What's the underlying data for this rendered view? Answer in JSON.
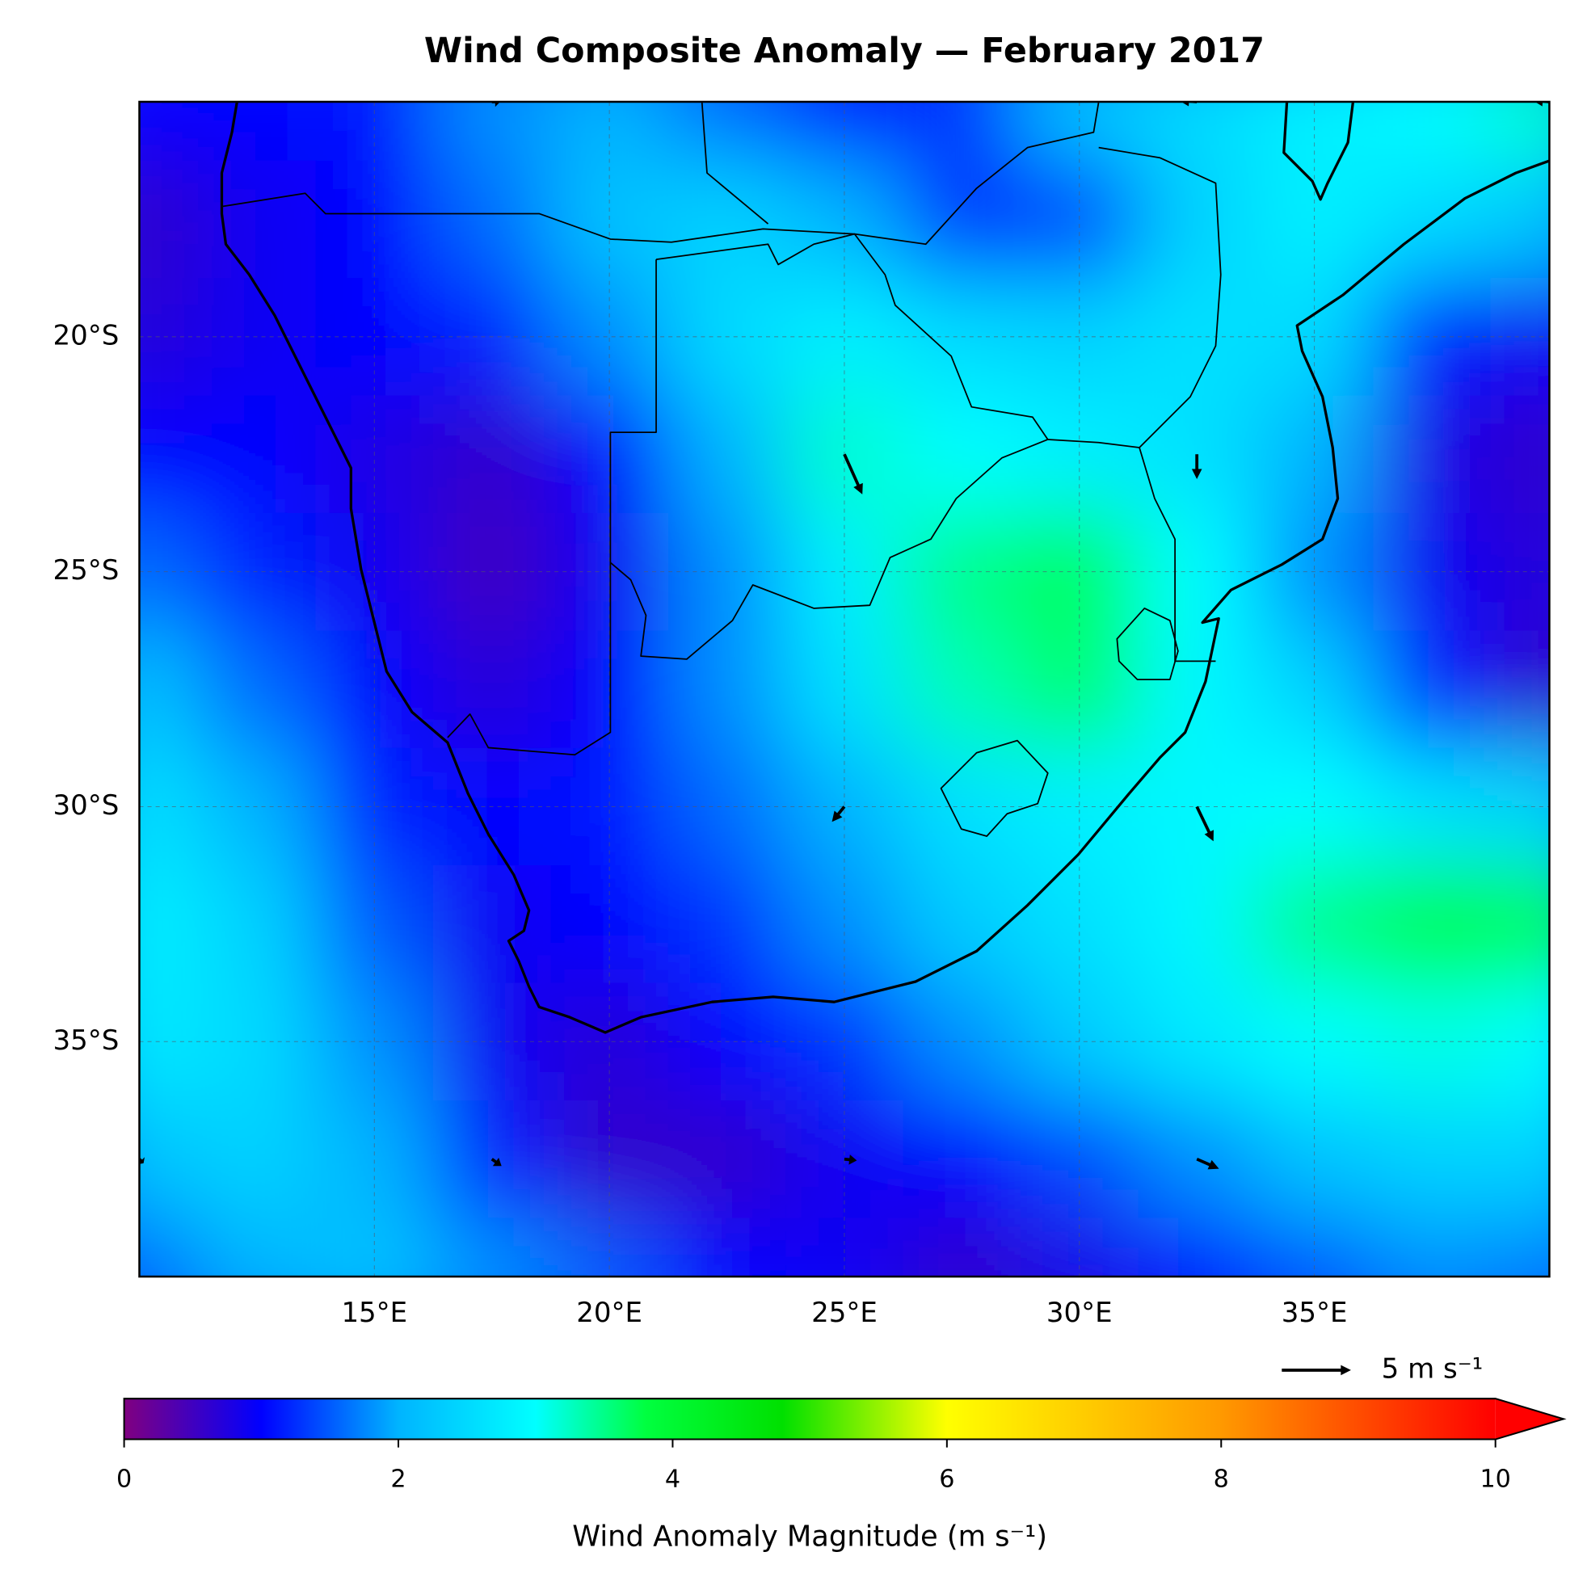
{
  "chart_data": {
    "type": "map",
    "title": "Wind Composite Anomaly — February 2017",
    "xlim": [
      10,
      40
    ],
    "ylim": [
      -40,
      -15
    ],
    "xticks": [
      {
        "value": 15,
        "label": "15°E"
      },
      {
        "value": 20,
        "label": "20°E"
      },
      {
        "value": 25,
        "label": "25°E"
      },
      {
        "value": 30,
        "label": "30°E"
      },
      {
        "value": 35,
        "label": "35°E"
      }
    ],
    "yticks": [
      {
        "value": -20,
        "label": "20°S"
      },
      {
        "value": -25,
        "label": "25°S"
      },
      {
        "value": -30,
        "label": "30°S"
      },
      {
        "value": -35,
        "label": "35°S"
      }
    ],
    "grid": true,
    "field": {
      "lons": [
        10,
        12.5,
        15,
        17.5,
        20,
        22.5,
        25,
        27.5,
        30,
        32.5,
        35,
        37.5,
        40
      ],
      "lats": [
        -15,
        -17.5,
        -20,
        -22.5,
        -25,
        -27.5,
        -30,
        -32.5,
        -35,
        -37.5,
        -40
      ],
      "values": [
        [
          1.0,
          1.0,
          1.1,
          1.8,
          2.0,
          1.6,
          1.1,
          1.3,
          2.2,
          2.5,
          2.8,
          3.0,
          3.2
        ],
        [
          0.6,
          0.9,
          1.0,
          1.6,
          2.2,
          2.4,
          2.0,
          1.3,
          1.4,
          2.4,
          2.8,
          2.5,
          2.2
        ],
        [
          0.7,
          0.9,
          1.0,
          1.2,
          1.8,
          2.5,
          2.8,
          2.5,
          2.4,
          2.6,
          2.5,
          1.2,
          0.9
        ],
        [
          1.0,
          1.0,
          0.8,
          0.6,
          1.0,
          2.0,
          3.2,
          3.0,
          2.8,
          2.6,
          2.0,
          0.8,
          0.6
        ],
        [
          1.6,
          1.2,
          0.9,
          0.5,
          0.9,
          1.8,
          2.8,
          3.5,
          3.7,
          3.0,
          1.8,
          0.9,
          0.7
        ],
        [
          2.2,
          1.6,
          1.0,
          0.7,
          1.0,
          1.8,
          2.6,
          3.3,
          3.6,
          2.9,
          2.4,
          1.2,
          0.6
        ],
        [
          2.6,
          2.0,
          1.2,
          1.0,
          1.1,
          1.6,
          2.0,
          2.6,
          2.8,
          2.9,
          3.0,
          2.6,
          2.4
        ],
        [
          2.8,
          2.4,
          1.5,
          0.9,
          1.0,
          1.3,
          1.8,
          2.3,
          2.6,
          2.9,
          3.5,
          3.8,
          3.7
        ],
        [
          2.7,
          2.5,
          1.8,
          0.9,
          0.7,
          1.0,
          1.3,
          1.8,
          2.3,
          2.7,
          3.0,
          3.1,
          3.0
        ],
        [
          2.2,
          2.4,
          2.0,
          1.2,
          0.6,
          0.6,
          0.9,
          1.0,
          1.4,
          1.8,
          2.2,
          2.4,
          2.4
        ],
        [
          1.6,
          2.0,
          2.2,
          1.8,
          1.5,
          1.0,
          0.9,
          0.6,
          0.8,
          1.1,
          1.5,
          1.8,
          1.7
        ]
      ]
    },
    "vectors": [
      {
        "lon": 17.5,
        "lat": -15,
        "u": 0.6,
        "v": 0.0
      },
      {
        "lon": 32.5,
        "lat": -15,
        "u": -1.3,
        "v": 0.1
      },
      {
        "lon": 40,
        "lat": -15,
        "u": -1.2,
        "v": 0.1
      },
      {
        "lon": 25,
        "lat": -22.5,
        "u": 1.3,
        "v": -2.9
      },
      {
        "lon": 32.5,
        "lat": -22.5,
        "u": 0.0,
        "v": -1.8
      },
      {
        "lon": 25,
        "lat": -30,
        "u": -0.9,
        "v": -1.1
      },
      {
        "lon": 32.5,
        "lat": -30,
        "u": 1.2,
        "v": -2.5
      },
      {
        "lon": 10,
        "lat": -37.5,
        "u": 0.3,
        "v": -0.3
      },
      {
        "lon": 17.5,
        "lat": -37.5,
        "u": 0.7,
        "v": -0.5
      },
      {
        "lon": 25,
        "lat": -37.5,
        "u": 0.9,
        "v": -0.1
      },
      {
        "lon": 32.5,
        "lat": -37.5,
        "u": 1.6,
        "v": -0.7
      }
    ],
    "quiver_key": {
      "value": 5,
      "label": "5 m s⁻¹"
    },
    "colorbar": {
      "label": "Wind Anomaly Magnitude (m s⁻¹)",
      "lim": [
        0,
        10
      ],
      "ticks": [
        0,
        2,
        4,
        6,
        8,
        10
      ],
      "extend": "max",
      "stops": [
        {
          "value": 0,
          "color": "#800080"
        },
        {
          "value": 1,
          "color": "#0000ff"
        },
        {
          "value": 2,
          "color": "#00b4ff"
        },
        {
          "value": 3,
          "color": "#00ffff"
        },
        {
          "value": 3.8,
          "color": "#00ff40"
        },
        {
          "value": 4.8,
          "color": "#00e000"
        },
        {
          "value": 6,
          "color": "#ffff00"
        },
        {
          "value": 8,
          "color": "#ff9900"
        },
        {
          "value": 10,
          "color": "#ff0000"
        }
      ]
    }
  }
}
